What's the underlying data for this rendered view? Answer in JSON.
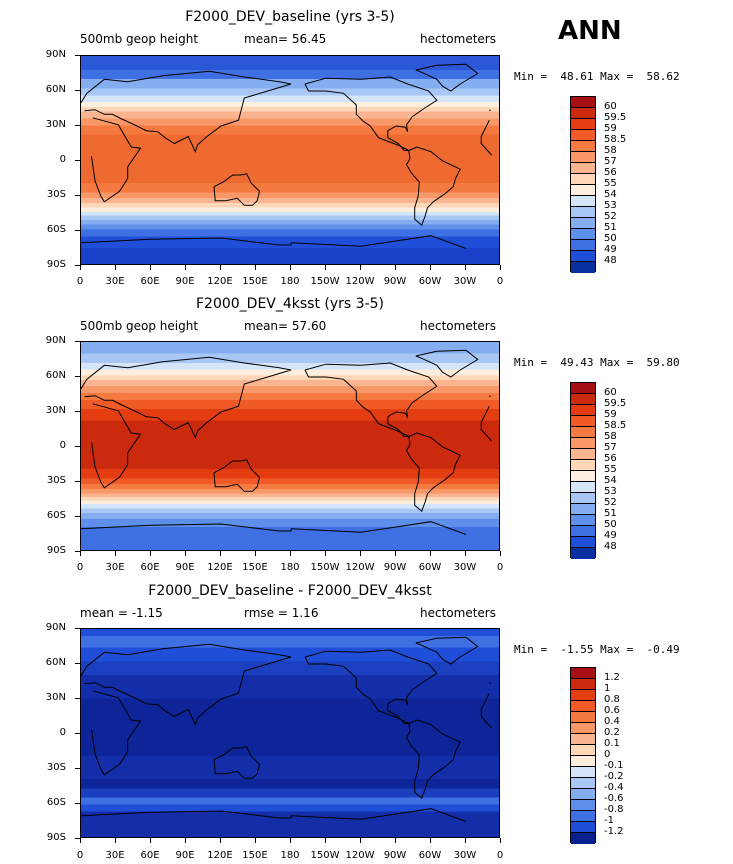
{
  "season": "ANN",
  "panels": [
    {
      "title": "F2000_DEV_baseline (yrs 3-5)",
      "left_label": "500mb geop height",
      "center_label": "mean=  56.45",
      "right_label": "hectometers",
      "minmax": "Min =  48.61 Max =  58.62",
      "colorbar_labels": [
        "60",
        "59.5",
        "59",
        "58.5",
        "58",
        "57",
        "56",
        "55",
        "54",
        "53",
        "52",
        "51",
        "50",
        "49",
        "48"
      ],
      "colorbar_colors": [
        "#a50f15",
        "#cb2a0e",
        "#e43d12",
        "#ef5a26",
        "#f47a40",
        "#f89868",
        "#fab590",
        "#fdd7b8",
        "#fdeede",
        "#d4e4f9",
        "#a9c7f5",
        "#85aef0",
        "#5e8fea",
        "#3e6fe3",
        "#1f4fd9",
        "#0a2fa0"
      ],
      "bands": [
        {
          "lat": 90,
          "color": "#2c57d6"
        },
        {
          "lat": 78,
          "color": "#3e6fe3"
        },
        {
          "lat": 70,
          "color": "#85aef0"
        },
        {
          "lat": 62,
          "color": "#a9c7f5"
        },
        {
          "lat": 56,
          "color": "#d4e4f9"
        },
        {
          "lat": 50,
          "color": "#fdeede"
        },
        {
          "lat": 46,
          "color": "#fdd7b8"
        },
        {
          "lat": 42,
          "color": "#fab590"
        },
        {
          "lat": 36,
          "color": "#f89868"
        },
        {
          "lat": 30,
          "color": "#f47a40"
        },
        {
          "lat": 22,
          "color": "#ef6a30"
        },
        {
          "lat": -20,
          "color": "#f47a40"
        },
        {
          "lat": -28,
          "color": "#f89868"
        },
        {
          "lat": -33,
          "color": "#fab590"
        },
        {
          "lat": -37,
          "color": "#fdd7b8"
        },
        {
          "lat": -41,
          "color": "#fdeede"
        },
        {
          "lat": -45,
          "color": "#d4e4f9"
        },
        {
          "lat": -48,
          "color": "#a9c7f5"
        },
        {
          "lat": -52,
          "color": "#85aef0"
        },
        {
          "lat": -56,
          "color": "#5e8fea"
        },
        {
          "lat": -60,
          "color": "#3e6fe3"
        },
        {
          "lat": -66,
          "color": "#1f4fd9"
        },
        {
          "lat": -76,
          "color": "#1840c8"
        }
      ]
    },
    {
      "title": "F2000_DEV_4ksst (yrs 3-5)",
      "left_label": "500mb geop height",
      "center_label": "mean=  57.60",
      "right_label": "hectometers",
      "minmax": "Min =  49.43 Max =  59.80",
      "colorbar_labels": [
        "60",
        "59.5",
        "59",
        "58.5",
        "58",
        "57",
        "56",
        "55",
        "54",
        "53",
        "52",
        "51",
        "50",
        "49",
        "48"
      ],
      "colorbar_colors": [
        "#a50f15",
        "#cb2a0e",
        "#e43d12",
        "#ef5a26",
        "#f47a40",
        "#f89868",
        "#fab590",
        "#fdd7b8",
        "#fdeede",
        "#d4e4f9",
        "#a9c7f5",
        "#85aef0",
        "#5e8fea",
        "#3e6fe3",
        "#1f4fd9",
        "#0a2fa0"
      ],
      "bands": [
        {
          "lat": 90,
          "color": "#85aef0"
        },
        {
          "lat": 80,
          "color": "#a9c7f5"
        },
        {
          "lat": 72,
          "color": "#d4e4f9"
        },
        {
          "lat": 66,
          "color": "#fdeede"
        },
        {
          "lat": 61,
          "color": "#fdd7b8"
        },
        {
          "lat": 57,
          "color": "#fab590"
        },
        {
          "lat": 52,
          "color": "#f89868"
        },
        {
          "lat": 46,
          "color": "#f47a40"
        },
        {
          "lat": 40,
          "color": "#ef5a26"
        },
        {
          "lat": 32,
          "color": "#e43d12"
        },
        {
          "lat": 22,
          "color": "#cb2a0e"
        },
        {
          "lat": -20,
          "color": "#e43d12"
        },
        {
          "lat": -28,
          "color": "#ef5a26"
        },
        {
          "lat": -33,
          "color": "#f47a40"
        },
        {
          "lat": -37,
          "color": "#f89868"
        },
        {
          "lat": -41,
          "color": "#fab590"
        },
        {
          "lat": -44,
          "color": "#fdd7b8"
        },
        {
          "lat": -47,
          "color": "#fdeede"
        },
        {
          "lat": -50,
          "color": "#d4e4f9"
        },
        {
          "lat": -54,
          "color": "#a9c7f5"
        },
        {
          "lat": -58,
          "color": "#85aef0"
        },
        {
          "lat": -63,
          "color": "#5e8fea"
        },
        {
          "lat": -70,
          "color": "#3e6fe3"
        }
      ]
    },
    {
      "title": "F2000_DEV_baseline - F2000_DEV_4ksst",
      "left_label": "mean =  -1.15",
      "center_label": "rmse =  1.16",
      "right_label": "hectometers",
      "minmax": "Min =  -1.55 Max =  -0.49",
      "colorbar_labels": [
        "1.2",
        "1",
        "0.8",
        "0.6",
        "0.4",
        "0.2",
        "0.1",
        "0",
        "-0.1",
        "-0.2",
        "-0.4",
        "-0.6",
        "-0.8",
        "-1",
        "-1.2"
      ],
      "colorbar_colors": [
        "#a50f15",
        "#cb2a0e",
        "#e43d12",
        "#ef5a26",
        "#f47a40",
        "#f89868",
        "#fab590",
        "#fdd7b8",
        "#fdeede",
        "#d4e4f9",
        "#a9c7f5",
        "#85aef0",
        "#5e8fea",
        "#3e6fe3",
        "#1f4fd9",
        "#0a1f8f"
      ],
      "bands": [
        {
          "lat": 90,
          "color": "#1f4fd9"
        },
        {
          "lat": 84,
          "color": "#3e6fe3"
        },
        {
          "lat": 74,
          "color": "#1f4fd9"
        },
        {
          "lat": 62,
          "color": "#1a3fbf"
        },
        {
          "lat": 50,
          "color": "#132ea8"
        },
        {
          "lat": 30,
          "color": "#0e2599"
        },
        {
          "lat": -20,
          "color": "#132ea8"
        },
        {
          "lat": -40,
          "color": "#0e2599"
        },
        {
          "lat": -48,
          "color": "#1a3fbf"
        },
        {
          "lat": -56,
          "color": "#3e6fe3"
        },
        {
          "lat": -62,
          "color": "#1f4fd9"
        },
        {
          "lat": -68,
          "color": "#132ea8"
        }
      ]
    }
  ],
  "lat_labels": [
    "90N",
    "60N",
    "30N",
    "0",
    "30S",
    "60S",
    "90S"
  ],
  "lon_labels": [
    "0",
    "30E",
    "60E",
    "90E",
    "120E",
    "150E",
    "180",
    "150W",
    "120W",
    "90W",
    "60W",
    "30W",
    "0"
  ]
}
